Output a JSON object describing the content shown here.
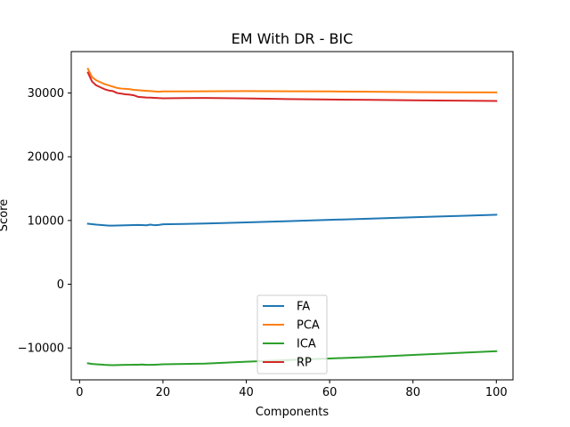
{
  "chart_data": {
    "type": "line",
    "title": "EM With DR - BIC",
    "xlabel": "Components",
    "ylabel": "Score",
    "xlim": [
      -2,
      104
    ],
    "ylim": [
      -15000,
      36500
    ],
    "xticks": [
      0,
      20,
      40,
      60,
      80,
      100
    ],
    "yticks": [
      -10000,
      0,
      10000,
      20000,
      30000
    ],
    "grid": false,
    "legend_position": "lower center",
    "series": [
      {
        "name": "FA",
        "color": "#1f77b4",
        "x": [
          2,
          3,
          4,
          5,
          6,
          7,
          8,
          9,
          10,
          11,
          12,
          13,
          14,
          15,
          16,
          17,
          18,
          19,
          20,
          25,
          30,
          40,
          50,
          60,
          70,
          80,
          90,
          100
        ],
        "y": [
          9500,
          9420,
          9350,
          9300,
          9250,
          9200,
          9200,
          9220,
          9230,
          9250,
          9270,
          9290,
          9300,
          9280,
          9250,
          9350,
          9260,
          9300,
          9400,
          9450,
          9530,
          9700,
          9900,
          10100,
          10300,
          10500,
          10700,
          10900
        ]
      },
      {
        "name": "PCA",
        "color": "#ff7f0e",
        "x": [
          2,
          3,
          4,
          5,
          6,
          7,
          8,
          9,
          10,
          11,
          12,
          13,
          14,
          15,
          16,
          17,
          18,
          19,
          20,
          25,
          30,
          40,
          50,
          60,
          70,
          80,
          90,
          100
        ],
        "y": [
          33800,
          32500,
          32000,
          31700,
          31400,
          31200,
          31000,
          30800,
          30700,
          30650,
          30600,
          30500,
          30450,
          30400,
          30350,
          30300,
          30250,
          30200,
          30250,
          30250,
          30280,
          30300,
          30280,
          30250,
          30200,
          30150,
          30120,
          30100
        ]
      },
      {
        "name": "ICA",
        "color": "#2ca02c",
        "x": [
          2,
          3,
          4,
          5,
          6,
          7,
          8,
          9,
          10,
          11,
          12,
          13,
          14,
          15,
          16,
          17,
          18,
          19,
          20,
          25,
          30,
          40,
          50,
          60,
          70,
          80,
          90,
          100
        ],
        "y": [
          -12400,
          -12500,
          -12550,
          -12600,
          -12650,
          -12680,
          -12700,
          -12680,
          -12660,
          -12650,
          -12640,
          -12630,
          -12620,
          -12600,
          -12650,
          -12640,
          -12620,
          -12600,
          -12550,
          -12500,
          -12450,
          -12150,
          -11900,
          -11650,
          -11400,
          -11100,
          -10800,
          -10500
        ]
      },
      {
        "name": "RP",
        "color": "#d62728",
        "x": [
          2,
          3,
          4,
          5,
          6,
          7,
          8,
          9,
          10,
          11,
          12,
          13,
          14,
          15,
          16,
          17,
          18,
          19,
          20,
          25,
          30,
          40,
          50,
          60,
          70,
          80,
          90,
          100
        ],
        "y": [
          33200,
          31800,
          31200,
          30900,
          30600,
          30400,
          30300,
          30000,
          29900,
          29800,
          29750,
          29650,
          29400,
          29350,
          29300,
          29280,
          29250,
          29200,
          29180,
          29200,
          29220,
          29150,
          29050,
          28980,
          28920,
          28850,
          28800,
          28750
        ]
      }
    ]
  }
}
